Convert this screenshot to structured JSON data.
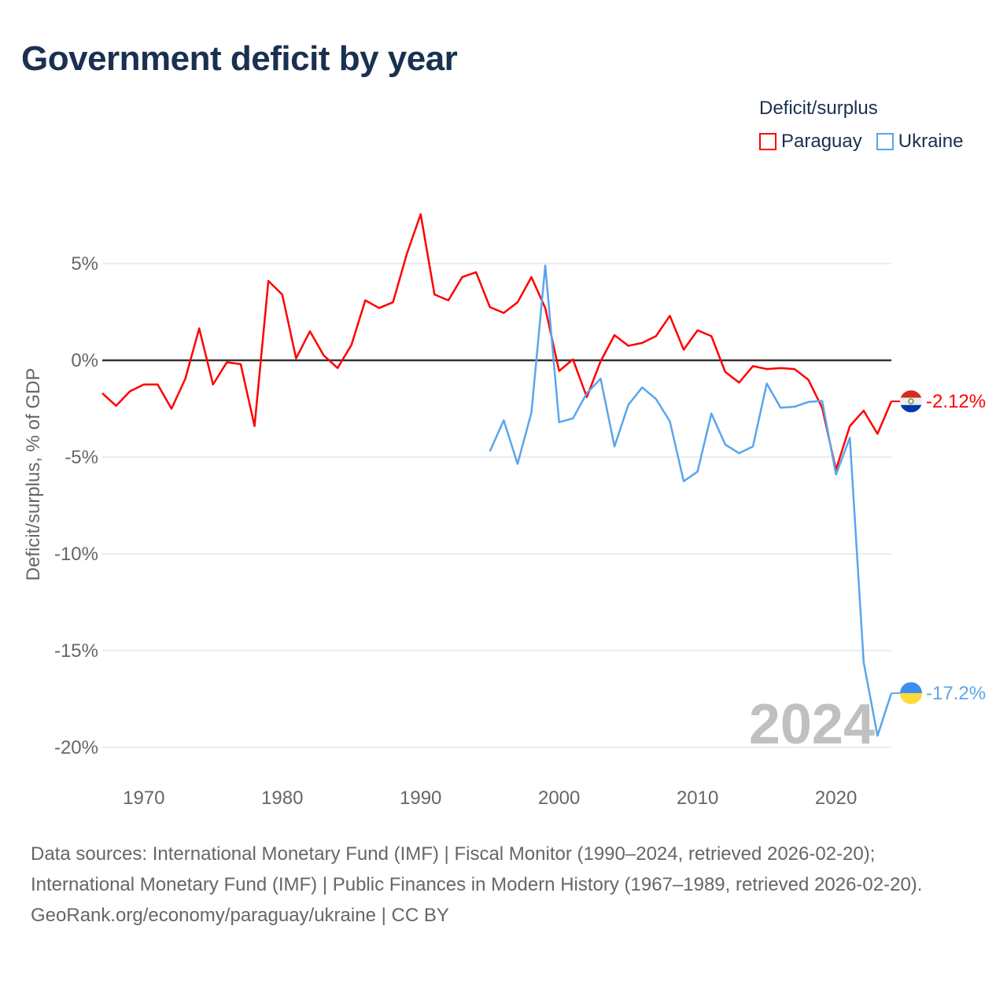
{
  "chart_data": {
    "type": "line",
    "title": "Government deficit by year",
    "xlabel": "",
    "ylabel": "Deficit/surplus, % of GDP",
    "xlim": [
      1967,
      2024
    ],
    "ylim": [
      -21,
      8.5
    ],
    "x_ticks": [
      1970,
      1980,
      1990,
      2000,
      2010,
      2020
    ],
    "x_tick_labels": [
      "1970",
      "1980",
      "1990",
      "2000",
      "2010",
      "2020"
    ],
    "y_ticks": [
      5,
      0,
      -5,
      -10,
      -15,
      -20
    ],
    "y_tick_labels": [
      "5%",
      "0%",
      "-5%",
      "-10%",
      "-15%",
      "-20%"
    ],
    "grid": true,
    "legend_title": "Deficit/surplus",
    "legend_position": "top-right",
    "year_watermark": "2024",
    "series": [
      {
        "name": "Paraguay",
        "color": "#ff0000",
        "end_label": "-2.12%",
        "start_year": 1967,
        "values": [
          -1.7,
          -2.35,
          -1.6,
          -1.25,
          -1.25,
          -2.5,
          -0.95,
          1.65,
          -1.25,
          -0.1,
          -0.2,
          -3.4,
          4.1,
          3.4,
          0.1,
          1.5,
          0.25,
          -0.4,
          0.8,
          3.1,
          2.7,
          3.0,
          5.5,
          7.55,
          3.4,
          3.1,
          4.3,
          4.55,
          2.75,
          2.45,
          3.0,
          4.3,
          2.7,
          -0.55,
          0.05,
          -1.9,
          -0.05,
          1.3,
          0.75,
          0.9,
          1.25,
          2.3,
          0.55,
          1.55,
          1.25,
          -0.6,
          -1.15,
          -0.3,
          -0.45,
          -0.4,
          -0.45,
          -1.0,
          -2.45,
          -5.65,
          -3.4,
          -2.6,
          -3.8,
          -2.12
        ]
      },
      {
        "name": "Ukraine",
        "color": "#5aa5ec",
        "end_label": "-17.2%",
        "start_year": 1995,
        "values": [
          -4.7,
          -3.1,
          -5.35,
          -2.7,
          4.9,
          -3.2,
          -3.0,
          -1.7,
          -0.95,
          -4.45,
          -2.3,
          -1.4,
          -2.0,
          -3.15,
          -6.25,
          -5.75,
          -2.75,
          -4.35,
          -4.8,
          -4.45,
          -1.2,
          -2.45,
          -2.4,
          -2.15,
          -2.1,
          -5.9,
          -4.0,
          -15.6,
          -19.4,
          -17.2
        ]
      }
    ]
  },
  "footer": {
    "sources": "Data sources: International Monetary Fund (IMF) | Fiscal Monitor (1990–2024, retrieved 2026-02-20); International Monetary Fund (IMF) | Public Finances in Modern History (1967–1989, retrieved 2026-02-20).",
    "credit": "GeoRank.org/economy/paraguay/ukraine | CC BY"
  }
}
